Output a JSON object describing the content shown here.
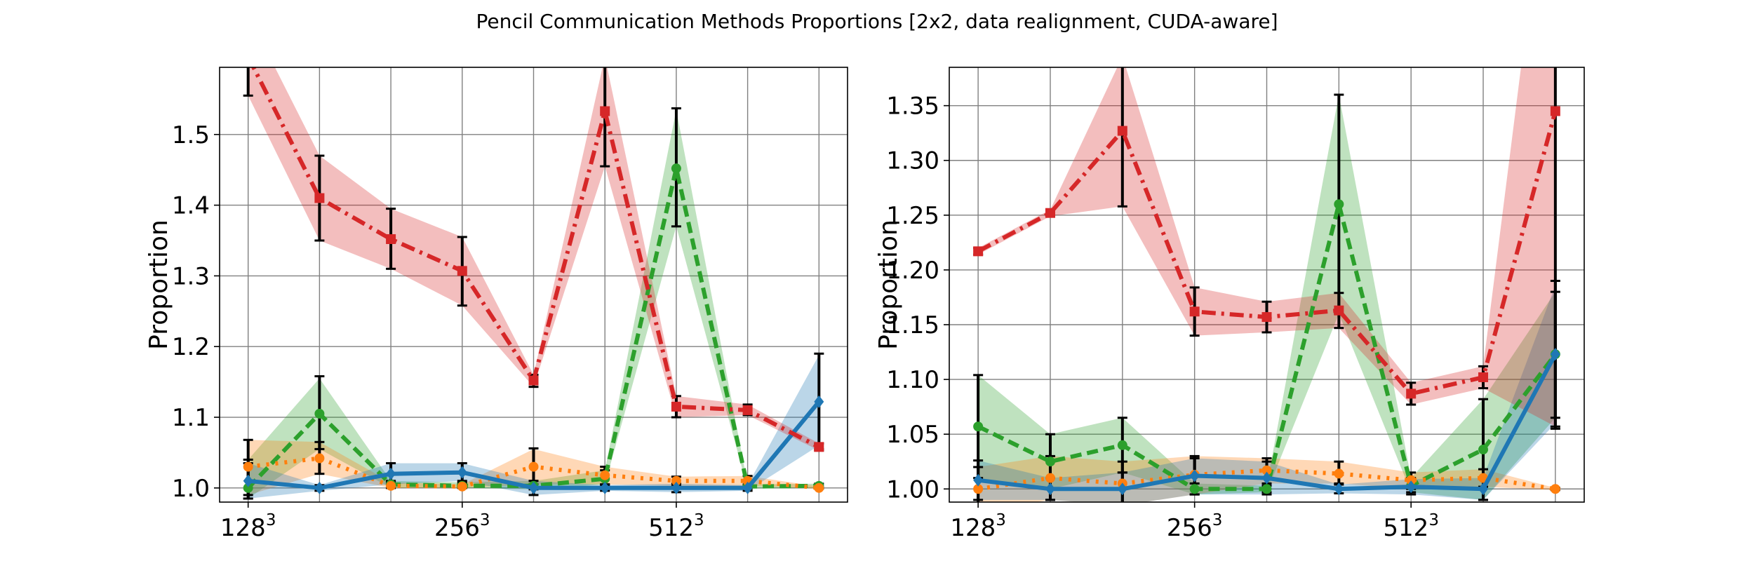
{
  "title": "Pencil Communication Methods Proportions [2x2, data realignment, CUDA-aware]",
  "chart_data": [
    {
      "type": "line",
      "ylabel": "Proportion",
      "xlabel": "",
      "x": [
        0,
        1,
        2,
        3,
        4,
        5,
        6,
        7,
        8
      ],
      "xticks": [
        {
          "x": 0,
          "base": "128",
          "exp": "3"
        },
        {
          "x": 3,
          "base": "256",
          "exp": "3"
        },
        {
          "x": 6,
          "base": "512",
          "exp": "3"
        }
      ],
      "xlim": [
        -0.4,
        8.4
      ],
      "ylim": [
        0.98,
        1.595
      ],
      "yticks": [
        {
          "v": 1.0,
          "label": "1.0"
        },
        {
          "v": 1.1,
          "label": "1.1"
        },
        {
          "v": 1.2,
          "label": "1.2"
        },
        {
          "v": 1.3,
          "label": "1.3"
        },
        {
          "v": 1.4,
          "label": "1.4"
        },
        {
          "v": 1.5,
          "label": "1.5"
        }
      ],
      "grid": true,
      "series": [
        {
          "color": "#2ca02c",
          "dash": "dashed",
          "marker": "circle",
          "values": [
            1.0,
            1.105,
            1.005,
            1.003,
            1.003,
            1.013,
            1.452,
            1.002,
            1.003
          ],
          "band_lo": [
            0.985,
            1.055,
            1.0,
            1.0,
            0.998,
            1.005,
            1.37,
            0.999,
            1.0
          ],
          "band_hi": [
            1.04,
            1.155,
            1.01,
            1.008,
            1.01,
            1.025,
            1.535,
            1.005,
            1.006
          ],
          "err_lo": [
            0.985,
            1.055,
            1.0,
            1.0,
            0.998,
            1.005,
            1.37,
            0.999,
            1.0
          ],
          "err_hi": [
            1.04,
            1.158,
            1.01,
            1.008,
            1.01,
            1.025,
            1.537,
            1.005,
            1.006
          ]
        },
        {
          "color": "#ff7f0e",
          "dash": "dotted",
          "marker": "circle",
          "values": [
            1.03,
            1.042,
            1.003,
            1.002,
            1.03,
            1.018,
            1.01,
            1.01,
            1.0
          ],
          "band_lo": [
            0.99,
            1.02,
            1.0,
            1.0,
            1.005,
            1.005,
            1.003,
            1.003,
            0.999
          ],
          "band_hi": [
            1.068,
            1.065,
            1.008,
            1.005,
            1.055,
            1.03,
            1.016,
            1.017,
            1.002
          ],
          "err_lo": [
            0.99,
            1.02,
            1.0,
            1.0,
            1.005,
            1.005,
            1.003,
            1.003,
            0.999
          ],
          "err_hi": [
            1.068,
            1.065,
            1.008,
            1.005,
            1.056,
            1.03,
            1.016,
            1.017,
            1.002
          ]
        },
        {
          "color": "#1f77b4",
          "dash": "solid",
          "marker": "diamond",
          "values": [
            1.01,
            1.0,
            1.02,
            1.022,
            1.0,
            1.0,
            1.0,
            1.0,
            1.122
          ],
          "band_lo": [
            0.985,
            0.996,
            1.005,
            1.01,
            0.99,
            0.996,
            0.994,
            0.996,
            1.06
          ],
          "band_hi": [
            1.035,
            1.004,
            1.035,
            1.035,
            1.01,
            1.004,
            1.006,
            1.004,
            1.188
          ],
          "err_lo": [
            0.985,
            0.996,
            1.005,
            1.01,
            0.99,
            0.996,
            0.994,
            0.996,
            1.055
          ],
          "err_hi": [
            1.035,
            1.004,
            1.035,
            1.035,
            1.01,
            1.004,
            1.006,
            1.004,
            1.19
          ]
        },
        {
          "color": "#d62728",
          "dash": "dashdot",
          "marker": "square",
          "values": [
            1.61,
            1.41,
            1.352,
            1.307,
            1.152,
            1.533,
            1.115,
            1.11,
            1.058
          ],
          "band_lo": [
            1.555,
            1.35,
            1.31,
            1.258,
            1.143,
            1.455,
            1.1,
            1.103,
            1.053
          ],
          "band_hi": [
            1.67,
            1.47,
            1.395,
            1.355,
            1.16,
            1.61,
            1.13,
            1.118,
            1.063
          ],
          "err_lo": [
            1.555,
            1.35,
            1.31,
            1.258,
            1.143,
            1.455,
            1.1,
            1.103,
            1.053
          ],
          "err_hi": [
            1.67,
            1.47,
            1.395,
            1.355,
            1.16,
            1.61,
            1.13,
            1.118,
            1.063
          ]
        }
      ]
    },
    {
      "type": "line",
      "ylabel": "Proportion",
      "xlabel": "",
      "x": [
        0,
        1,
        2,
        3,
        4,
        5,
        6,
        7,
        8
      ],
      "xticks": [
        {
          "x": 0,
          "base": "128",
          "exp": "3"
        },
        {
          "x": 3,
          "base": "256",
          "exp": "3"
        },
        {
          "x": 6,
          "base": "512",
          "exp": "3"
        }
      ],
      "xlim": [
        -0.4,
        8.4
      ],
      "ylim": [
        0.988,
        1.385
      ],
      "yticks": [
        {
          "v": 1.0,
          "label": "1.00"
        },
        {
          "v": 1.05,
          "label": "1.05"
        },
        {
          "v": 1.1,
          "label": "1.10"
        },
        {
          "v": 1.15,
          "label": "1.15"
        },
        {
          "v": 1.2,
          "label": "1.20"
        },
        {
          "v": 1.25,
          "label": "1.25"
        },
        {
          "v": 1.3,
          "label": "1.30"
        },
        {
          "v": 1.35,
          "label": "1.35"
        }
      ],
      "grid": true,
      "series": [
        {
          "color": "#2ca02c",
          "dash": "dashed",
          "marker": "circle",
          "values": [
            1.057,
            1.025,
            1.04,
            1.0,
            1.0,
            1.26,
            1.003,
            1.036,
            1.123
          ],
          "band_lo": [
            1.01,
            1.0,
            1.015,
            0.995,
            0.997,
            1.16,
            0.997,
            0.99,
            1.065
          ],
          "band_hi": [
            1.104,
            1.05,
            1.065,
            1.005,
            1.003,
            1.36,
            1.01,
            1.082,
            1.18
          ],
          "err_lo": [
            1.01,
            1.0,
            1.015,
            0.995,
            0.997,
            1.16,
            0.997,
            0.99,
            1.065
          ],
          "err_hi": [
            1.104,
            1.05,
            1.065,
            1.005,
            1.003,
            1.36,
            1.01,
            1.082,
            1.18
          ]
        },
        {
          "color": "#ff7f0e",
          "dash": "dotted",
          "marker": "circle",
          "values": [
            1.0,
            1.01,
            1.005,
            1.013,
            1.017,
            1.014,
            1.008,
            1.01,
            1.0
          ],
          "band_lo": [
            0.98,
            0.99,
            0.985,
            0.995,
            1.005,
            1.005,
            1.0,
            1.002,
            0.999
          ],
          "band_hi": [
            1.02,
            1.03,
            1.025,
            1.03,
            1.028,
            1.025,
            1.015,
            1.018,
            1.001
          ],
          "err_lo": [
            0.98,
            0.99,
            0.985,
            0.995,
            1.005,
            1.005,
            1.0,
            1.002,
            0.999
          ],
          "err_hi": [
            1.02,
            1.03,
            1.025,
            1.03,
            1.028,
            1.025,
            1.015,
            1.018,
            1.001
          ]
        },
        {
          "color": "#1f77b4",
          "dash": "solid",
          "marker": "diamond",
          "values": [
            1.008,
            1.0,
            1.0,
            1.012,
            1.01,
            1.0,
            1.002,
            1.0,
            1.123
          ],
          "band_lo": [
            0.99,
            0.99,
            0.985,
            0.995,
            0.995,
            0.996,
            0.995,
            0.99,
            1.06
          ],
          "band_hi": [
            1.026,
            1.01,
            1.015,
            1.028,
            1.025,
            1.004,
            1.009,
            1.01,
            1.186
          ],
          "err_lo": [
            0.99,
            0.99,
            0.985,
            0.995,
            0.995,
            0.996,
            0.995,
            0.99,
            1.055
          ],
          "err_hi": [
            1.026,
            1.01,
            1.015,
            1.028,
            1.025,
            1.004,
            1.009,
            1.01,
            1.19
          ]
        },
        {
          "color": "#d62728",
          "dash": "dashdot",
          "marker": "square",
          "values": [
            1.217,
            1.252,
            1.327,
            1.162,
            1.157,
            1.163,
            1.087,
            1.102,
            1.345
          ],
          "band_lo": [
            1.214,
            1.249,
            1.258,
            1.14,
            1.143,
            1.147,
            1.077,
            1.092,
            1.057
          ],
          "band_hi": [
            1.22,
            1.255,
            1.395,
            1.184,
            1.171,
            1.179,
            1.097,
            1.112,
            1.633
          ],
          "err_lo": [
            1.214,
            1.249,
            1.258,
            1.14,
            1.143,
            1.147,
            1.077,
            1.092,
            1.057
          ],
          "err_hi": [
            1.22,
            1.255,
            1.395,
            1.184,
            1.171,
            1.179,
            1.097,
            1.112,
            1.633
          ]
        }
      ]
    }
  ]
}
